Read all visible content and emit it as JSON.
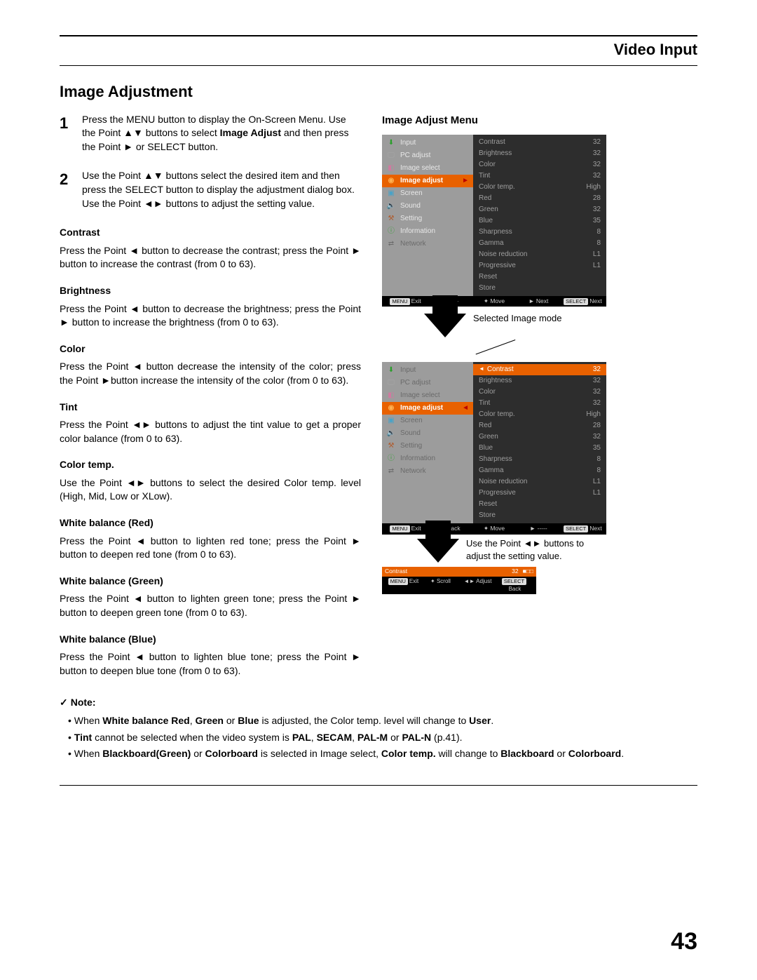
{
  "header": {
    "section": "Video Input"
  },
  "page_number": "43",
  "heading": "Image Adjustment",
  "steps": [
    {
      "num": "1",
      "html": "Press the MENU button to display the On-Screen Menu. Use the Point ▲▼ buttons to select <b>Image Adjust</b> and then press the Point ► or SELECT  button."
    },
    {
      "num": "2",
      "html": "Use the Point ▲▼ buttons select the desired item and then press the SELECT button to display the adjustment dialog box. Use the Point ◄► buttons to adjust the setting value."
    }
  ],
  "params": [
    {
      "title": "Contrast",
      "text": "Press the Point ◄ button to decrease the contrast; press the Point ► button to increase the contrast (from 0 to 63)."
    },
    {
      "title": "Brightness",
      "text": "Press the Point ◄ button to decrease the brightness; press the Point ► button to increase the brightness (from 0 to 63)."
    },
    {
      "title": "Color",
      "text": "Press the Point ◄ button decrease the intensity of the color; press the Point ►button increase the intensity of the color (from 0 to 63)."
    },
    {
      "title": "Tint",
      "text": "Press the Point ◄► buttons to adjust the tint value to get a proper color balance (from 0 to 63)."
    },
    {
      "title": "Color temp.",
      "text": "Use the Point ◄► buttons to select the desired Color temp. level (High, Mid, Low or XLow)."
    },
    {
      "title": "White balance (Red)",
      "text": "Press the Point ◄ button to lighten red tone; press the Point ► button to deepen red tone (from 0 to 63)."
    },
    {
      "title": "White balance (Green)",
      "text": "Press the Point ◄ button to lighten green tone; press the Point ► button to deepen green tone (from 0 to 63)."
    },
    {
      "title": "White balance (Blue)",
      "text": "Press the Point ◄ button to lighten blue tone; press the Point ► button to deepen blue tone (from 0 to 63)."
    }
  ],
  "note": {
    "title": "Note:",
    "items": [
      "When <b>White balance Red</b>, <b>Green</b> or <b>Blue</b> is adjusted, the Color temp. level will change to <b>User</b>.",
      "<b>Tint</b> cannot be selected when the video system is <b>PAL</b>, <b>SECAM</b>, <b>PAL-M</b> or <b>PAL-N</b> (p.41).",
      "When <b>Blackboard(Green)</b> or <b>Colorboard</b> is selected in Image select, <b>Color temp.</b> will change to <b>Blackboard</b> or <b>Colorboard</b>."
    ]
  },
  "right": {
    "title": "Image Adjust Menu",
    "selected_mode_label": "Selected Image mode",
    "use_point_note": "Use the Point ◄► buttons to adjust the setting value.",
    "menu_left": [
      {
        "icon": "⬇",
        "label": "Input",
        "iconColor": "#2a9d2a"
      },
      {
        "icon": "🖵",
        "label": "PC adjust",
        "iconColor": "#a8a8a8"
      },
      {
        "icon": "◧",
        "label": "Image select",
        "iconColor": "#d07aa0"
      },
      {
        "icon": "◉",
        "label": "Image adjust",
        "selected": true,
        "iconColor": "#ffb050"
      },
      {
        "icon": "▣",
        "label": "Screen",
        "iconColor": "#4aa3c7"
      },
      {
        "icon": "🔈",
        "label": "Sound",
        "iconColor": "#c8c8c8"
      },
      {
        "icon": "⚒",
        "label": "Setting",
        "iconColor": "#b05a2a"
      },
      {
        "icon": "ⓘ",
        "label": "Information",
        "iconColor": "#3aa03a"
      },
      {
        "icon": "⇄",
        "label": "Network",
        "dim": true,
        "iconColor": "#6a6a6a"
      }
    ],
    "values_panel1": [
      {
        "label": "Contrast",
        "value": "32"
      },
      {
        "label": "Brightness",
        "value": "32"
      },
      {
        "label": "Color",
        "value": "32"
      },
      {
        "label": "Tint",
        "value": "32"
      },
      {
        "label": "Color temp.",
        "value": "High"
      },
      {
        "label": "Red",
        "value": "28"
      },
      {
        "label": "Green",
        "value": "32"
      },
      {
        "label": "Blue",
        "value": "35"
      },
      {
        "label": "Sharpness",
        "value": "8"
      },
      {
        "label": "Gamma",
        "value": "8"
      },
      {
        "label": "Noise reduction",
        "value": "L1"
      },
      {
        "label": "Progressive",
        "value": "L1"
      },
      {
        "label": "Reset",
        "value": ""
      },
      {
        "label": "Store",
        "value": ""
      }
    ],
    "values_panel2": [
      {
        "label": "Contrast",
        "value": "32",
        "selected": true
      },
      {
        "label": "Brightness",
        "value": "32"
      },
      {
        "label": "Color",
        "value": "32"
      },
      {
        "label": "Tint",
        "value": "32"
      },
      {
        "label": "Color temp.",
        "value": "High"
      },
      {
        "label": "Red",
        "value": "28"
      },
      {
        "label": "Green",
        "value": "32"
      },
      {
        "label": "Blue",
        "value": "35"
      },
      {
        "label": "Sharpness",
        "value": "8"
      },
      {
        "label": "Gamma",
        "value": "8"
      },
      {
        "label": "Noise reduction",
        "value": "L1"
      },
      {
        "label": "Progressive",
        "value": "L1"
      },
      {
        "label": "Reset",
        "value": ""
      },
      {
        "label": "Store",
        "value": ""
      }
    ],
    "footer1": [
      "MENU Exit",
      "◄ -----",
      "✦ Move",
      "► Next",
      "SELECT Next"
    ],
    "footer2": [
      "MENU Exit",
      "◄ Back",
      "✦ Move",
      "► -----",
      "SELECT Next"
    ],
    "adjust_bar": {
      "label": "Contrast",
      "value": "32"
    },
    "adjust_footer": [
      "MENU Exit",
      "✦ Scroll",
      "◄► Adjust",
      "SELECT Back"
    ],
    "colors": {
      "highlight": "#e86100",
      "menu_gray": "#9c9c9c",
      "menu_dark": "#2d2d2d"
    }
  }
}
